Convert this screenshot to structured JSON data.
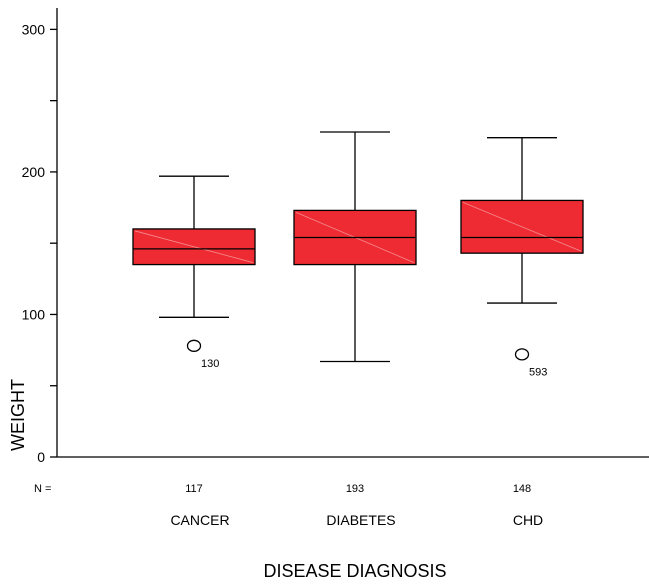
{
  "chart_data": {
    "type": "box",
    "xlabel": "DISEASE DIAGNOSIS",
    "ylabel": "WEIGHT",
    "ylim": [
      0,
      315
    ],
    "yticks": [
      0,
      100,
      200,
      300
    ],
    "yticks_minor": [
      50,
      150,
      250
    ],
    "n_prefix": "N =",
    "box_color": "#ee2b33",
    "categories": [
      "CANCER",
      "DIABETES",
      "CHD"
    ],
    "n": [
      "117",
      "193",
      "148"
    ],
    "boxes": [
      {
        "category": "CANCER",
        "whisker_low": 98,
        "q1": 135,
        "median": 146,
        "q3": 160,
        "whisker_high": 197,
        "outliers": [
          {
            "value": 78,
            "label": "130"
          }
        ]
      },
      {
        "category": "DIABETES",
        "whisker_low": 67,
        "q1": 135,
        "median": 154,
        "q3": 173,
        "whisker_high": 228,
        "outliers": []
      },
      {
        "category": "CHD",
        "whisker_low": 108,
        "q1": 143,
        "median": 154,
        "q3": 180,
        "whisker_high": 224,
        "outliers": [
          {
            "value": 72,
            "label": "593"
          }
        ]
      }
    ]
  }
}
